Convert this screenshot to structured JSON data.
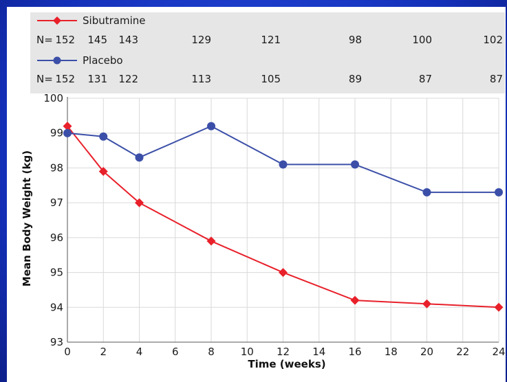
{
  "chart_data": {
    "type": "line",
    "xlabel": "Time (weeks)",
    "ylabel": "Mean Body Weight (kg)",
    "xlim": [
      0,
      24
    ],
    "ylim": [
      93,
      100
    ],
    "xticks": [
      0,
      2,
      4,
      6,
      8,
      10,
      12,
      14,
      16,
      18,
      20,
      22,
      24
    ],
    "yticks": [
      93,
      94,
      95,
      96,
      97,
      98,
      99,
      100
    ],
    "grid": true,
    "series": [
      {
        "name": "Sibutramine",
        "color": "#e8202a",
        "marker": "diamond",
        "x": [
          0,
          2,
          4,
          8,
          12,
          16,
          20,
          24
        ],
        "y": [
          99.2,
          97.9,
          97.0,
          95.9,
          95.0,
          94.2,
          94.1,
          94.0
        ],
        "n_prefix": "N=",
        "n": [
          "152",
          "145",
          "143",
          "129",
          "121",
          "98",
          "100",
          "102"
        ]
      },
      {
        "name": "Placebo",
        "color": "#3b4fa8",
        "marker": "circle",
        "x": [
          0,
          2,
          4,
          8,
          12,
          16,
          20,
          24
        ],
        "y": [
          99.0,
          98.9,
          98.3,
          99.2,
          98.1,
          98.1,
          97.3,
          97.3
        ],
        "n_prefix": "N=",
        "n": [
          "152",
          "131",
          "122",
          "113",
          "105",
          "89",
          "87",
          "87"
        ]
      }
    ]
  }
}
